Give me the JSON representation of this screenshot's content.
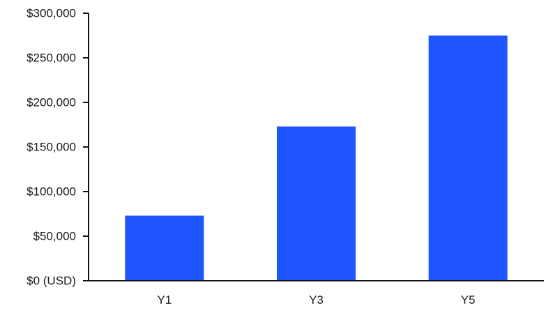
{
  "chart_data": {
    "type": "bar",
    "title": "",
    "xlabel": "",
    "ylabel": "",
    "categories": [
      "Y1",
      "Y3",
      "Y5"
    ],
    "values": [
      73000,
      173000,
      275000
    ],
    "ylim": [
      0,
      300000
    ],
    "y_ticks": [
      0,
      50000,
      100000,
      150000,
      200000,
      250000,
      300000
    ],
    "y_tick_labels": [
      "$0 (USD)",
      "$50,000",
      "$100,000",
      "$150,000",
      "$200,000",
      "$250,000",
      "$300,000"
    ],
    "bar_color": "#1f55ff",
    "grid": false,
    "legend": "none"
  }
}
